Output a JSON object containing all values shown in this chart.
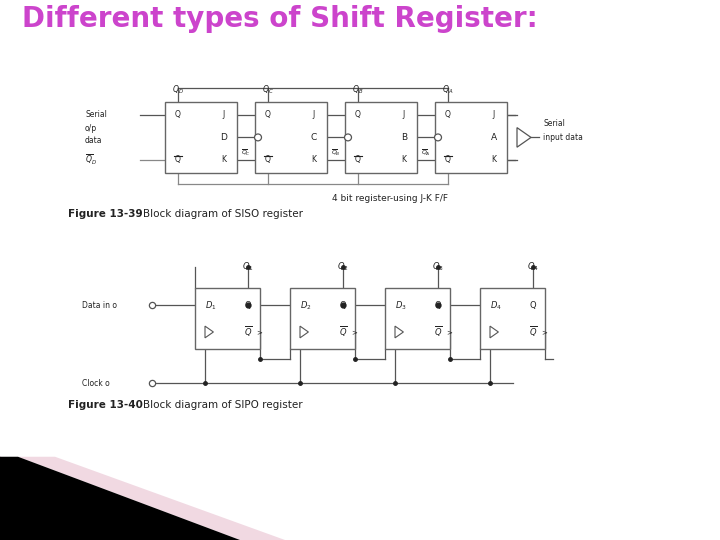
{
  "title": "Different types of Shift Register:",
  "title_color": "#CC44CC",
  "title_fontsize": 20,
  "title_weight": "bold",
  "bg_color": "#FFFFFF",
  "fig_caption1_bold": "Figure 13-39",
  "fig_caption1_rest": "    Block diagram of SISO register",
  "fig_caption2_bold": "Figure 13-40",
  "fig_caption2_rest": "    Block diagram of SIPO register",
  "center_text1": "4 bit register-using J-K F/F",
  "bottom_stripe_color1": "#8B0040",
  "bottom_stripe_color2": "#000000",
  "bottom_stripe_color3": "#E8C0D0",
  "wire_color": "#555555",
  "box_edge_color": "#666666",
  "text_color": "#222222"
}
